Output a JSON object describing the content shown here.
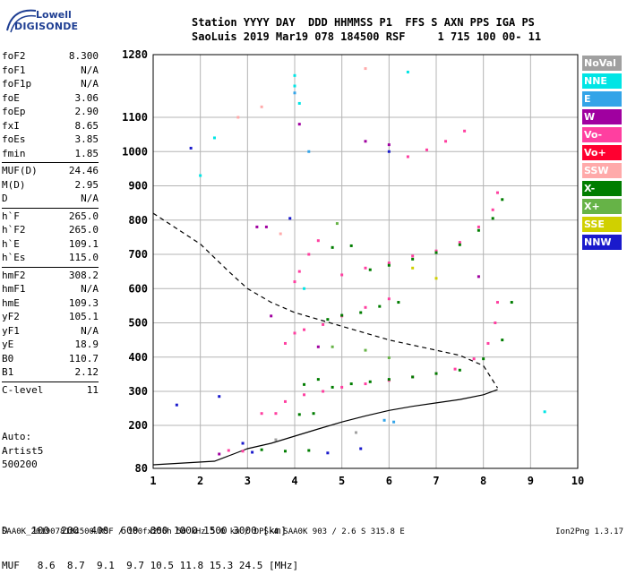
{
  "logo": {
    "line1": "Lowell",
    "line2": "DIGISONDE"
  },
  "header": {
    "row1": "Station YYYY DAY  DDD HHMMSS P1  FFS S AXN PPS IGA PS",
    "row2": "SaoLuis 2019 Mar19 078 184500 RSF     1 715 100 00- 11"
  },
  "params": [
    [
      {
        "k": "foF2",
        "v": "8.300"
      },
      {
        "k": "foF1",
        "v": "N/A"
      },
      {
        "k": "foF1p",
        "v": "N/A"
      },
      {
        "k": "foE",
        "v": "3.06"
      },
      {
        "k": "foEp",
        "v": "2.90"
      },
      {
        "k": "fxI",
        "v": "8.65"
      },
      {
        "k": "foEs",
        "v": "3.85"
      },
      {
        "k": "fmin",
        "v": "1.85"
      }
    ],
    [
      {
        "k": "MUF(D)",
        "v": "24.46"
      },
      {
        "k": "M(D)",
        "v": "2.95"
      },
      {
        "k": "D",
        "v": "N/A"
      }
    ],
    [
      {
        "k": "h`F",
        "v": "265.0"
      },
      {
        "k": "h`F2",
        "v": "265.0"
      },
      {
        "k": "h`E",
        "v": "109.1"
      },
      {
        "k": "h`Es",
        "v": "115.0"
      }
    ],
    [
      {
        "k": "hmF2",
        "v": "308.2"
      },
      {
        "k": "hmF1",
        "v": "N/A"
      },
      {
        "k": "hmE",
        "v": "109.3"
      },
      {
        "k": "yF2",
        "v": "105.1"
      },
      {
        "k": "yF1",
        "v": "N/A"
      },
      {
        "k": "yE",
        "v": "18.9"
      },
      {
        "k": "B0",
        "v": "110.7"
      },
      {
        "k": "B1",
        "v": "2.12"
      }
    ],
    [
      {
        "k": "C-level",
        "v": "11"
      }
    ]
  ],
  "auto": {
    "l1": "Auto:",
    "l2": "Artist5",
    "l3": "500200"
  },
  "legend": [
    {
      "label": "NoVal",
      "color": "#a0a0a0"
    },
    {
      "label": "NNE",
      "color": "#00e5e5"
    },
    {
      "label": "E",
      "color": "#33a4e8"
    },
    {
      "label": "W",
      "color": "#a000a0"
    },
    {
      "label": "Vo-",
      "color": "#ff3fa0"
    },
    {
      "label": "Vo+",
      "color": "#ff0030"
    },
    {
      "label": "SSW",
      "color": "#ffaaaa"
    },
    {
      "label": "X-",
      "color": "#007d00"
    },
    {
      "label": "X+",
      "color": "#66b347"
    },
    {
      "label": "SSE",
      "color": "#d0d000"
    },
    {
      "label": "NNW",
      "color": "#1a1acc"
    }
  ],
  "bottom": {
    "d_row": "D    100  200  400  600  800 1000 1500 3000 [km]",
    "muf_row": "MUF   8.6  8.7  9.1  9.7 10.5 11.8 15.3 24.5 [MHz]"
  },
  "footer": "SAA0K_2019078184500.RSF / 180fx256h 50 kHz 5.0 km / DPS-4 SAA0K 903 / 2.6 S 315.8 E",
  "footer_version": "Ion2Png 1.3.17",
  "chart_data": {
    "type": "scatter",
    "x_ticks": [
      "1",
      "2",
      "3",
      "4",
      "5",
      "6",
      "7",
      "8",
      "9",
      "10"
    ],
    "y_ticks": [
      "80",
      "200",
      "300",
      "400",
      "500",
      "600",
      "700",
      "800",
      "900",
      "1000",
      "1100",
      "1280"
    ],
    "xlim": [
      1,
      10
    ],
    "ylim": [
      80,
      1280
    ],
    "grid": true,
    "legend_placement": "right",
    "series": [
      {
        "name": "Vo-",
        "color": "#ff3fa0",
        "points": [
          [
            2.6,
            130
          ],
          [
            2.9,
            128
          ],
          [
            3.3,
            235
          ],
          [
            3.6,
            235
          ],
          [
            3.8,
            270
          ],
          [
            4.2,
            290
          ],
          [
            4.6,
            300
          ],
          [
            5.0,
            312
          ],
          [
            5.5,
            322
          ],
          [
            6.0,
            332
          ],
          [
            6.5,
            342
          ],
          [
            7.0,
            352
          ],
          [
            7.4,
            365
          ],
          [
            7.8,
            395
          ],
          [
            8.1,
            440
          ],
          [
            8.25,
            500
          ],
          [
            8.3,
            560
          ],
          [
            4.0,
            470
          ],
          [
            4.2,
            480
          ],
          [
            4.6,
            495
          ],
          [
            5.0,
            520
          ],
          [
            5.5,
            545
          ],
          [
            6.0,
            570
          ],
          [
            4.0,
            620
          ],
          [
            4.1,
            650
          ],
          [
            4.3,
            700
          ],
          [
            4.5,
            740
          ],
          [
            5.0,
            640
          ],
          [
            5.5,
            660
          ],
          [
            6.0,
            675
          ],
          [
            6.5,
            695
          ],
          [
            7.0,
            710
          ],
          [
            7.5,
            735
          ],
          [
            7.9,
            780
          ],
          [
            8.2,
            830
          ],
          [
            8.3,
            880
          ],
          [
            6.4,
            985
          ],
          [
            6.8,
            1005
          ],
          [
            7.2,
            1030
          ],
          [
            7.6,
            1060
          ],
          [
            3.8,
            440
          ]
        ]
      },
      {
        "name": "X-",
        "color": "#007d00",
        "points": [
          [
            3.3,
            132
          ],
          [
            3.8,
            128
          ],
          [
            4.3,
            130
          ],
          [
            4.1,
            232
          ],
          [
            4.4,
            235
          ],
          [
            4.2,
            320
          ],
          [
            4.5,
            335
          ],
          [
            4.8,
            312
          ],
          [
            5.2,
            322
          ],
          [
            5.6,
            328
          ],
          [
            6.0,
            335
          ],
          [
            6.5,
            342
          ],
          [
            7.0,
            352
          ],
          [
            7.5,
            362
          ],
          [
            8.0,
            395
          ],
          [
            8.4,
            450
          ],
          [
            8.6,
            560
          ],
          [
            4.7,
            510
          ],
          [
            5.0,
            522
          ],
          [
            5.4,
            530
          ],
          [
            5.8,
            548
          ],
          [
            6.2,
            560
          ],
          [
            4.8,
            720
          ],
          [
            5.2,
            725
          ],
          [
            5.6,
            655
          ],
          [
            6.0,
            668
          ],
          [
            6.5,
            686
          ],
          [
            7.0,
            705
          ],
          [
            7.5,
            728
          ],
          [
            7.9,
            770
          ],
          [
            8.2,
            805
          ],
          [
            8.4,
            860
          ]
        ]
      },
      {
        "name": "NNW",
        "color": "#1a1acc",
        "points": [
          [
            1.5,
            260
          ],
          [
            2.4,
            285
          ],
          [
            2.9,
            150
          ],
          [
            3.1,
            125
          ],
          [
            4.7,
            123
          ],
          [
            1.8,
            1010
          ],
          [
            3.9,
            805
          ],
          [
            5.4,
            135
          ],
          [
            6.0,
            1000
          ]
        ]
      },
      {
        "name": "W",
        "color": "#a000a0",
        "points": [
          [
            2.4,
            120
          ],
          [
            3.2,
            780
          ],
          [
            3.5,
            520
          ],
          [
            4.1,
            1080
          ],
          [
            4.5,
            430
          ],
          [
            5.5,
            1030
          ],
          [
            6.0,
            1020
          ],
          [
            7.9,
            635
          ],
          [
            3.4,
            780
          ]
        ]
      },
      {
        "name": "NNE",
        "color": "#00e5e5",
        "points": [
          [
            2.0,
            930
          ],
          [
            2.3,
            1040
          ],
          [
            4.0,
            1190
          ],
          [
            4.0,
            1220
          ],
          [
            4.1,
            1140
          ],
          [
            4.2,
            600
          ],
          [
            6.4,
            1230
          ],
          [
            9.3,
            240
          ]
        ]
      },
      {
        "name": "SSW",
        "color": "#ffaaaa",
        "points": [
          [
            2.8,
            1100
          ],
          [
            3.3,
            1130
          ],
          [
            3.7,
            760
          ],
          [
            5.5,
            1240
          ]
        ]
      },
      {
        "name": "X+",
        "color": "#66b347",
        "points": [
          [
            4.8,
            430
          ],
          [
            5.5,
            420
          ],
          [
            6.0,
            398
          ],
          [
            4.9,
            790
          ]
        ]
      },
      {
        "name": "SSE",
        "color": "#d0d000",
        "points": [
          [
            6.5,
            660
          ],
          [
            7.0,
            630
          ]
        ]
      },
      {
        "name": "E",
        "color": "#33a4e8",
        "points": [
          [
            4.0,
            1170
          ],
          [
            4.3,
            1000
          ],
          [
            5.9,
            215
          ],
          [
            6.1,
            210
          ]
        ]
      },
      {
        "name": "NoVal",
        "color": "#a0a0a0",
        "points": [
          [
            3.6,
            160
          ],
          [
            5.3,
            180
          ]
        ]
      }
    ],
    "profile_solid": [
      [
        1,
        90
      ],
      [
        2.3,
        100
      ],
      [
        2.6,
        115
      ],
      [
        2.8,
        125
      ],
      [
        3.0,
        135
      ],
      [
        3.5,
        150
      ],
      [
        4.0,
        170
      ],
      [
        4.5,
        190
      ],
      [
        5.0,
        210
      ],
      [
        5.5,
        228
      ],
      [
        6.0,
        244
      ],
      [
        6.5,
        256
      ],
      [
        7.0,
        266
      ],
      [
        7.5,
        276
      ],
      [
        8.0,
        290
      ],
      [
        8.3,
        305
      ]
    ],
    "profile_dashed": [
      [
        1,
        820
      ],
      [
        2.0,
        730
      ],
      [
        2.6,
        650
      ],
      [
        3.0,
        600
      ],
      [
        3.5,
        560
      ],
      [
        4.0,
        530
      ],
      [
        5.0,
        490
      ],
      [
        6.0,
        450
      ],
      [
        7.0,
        420
      ],
      [
        7.5,
        405
      ],
      [
        8.0,
        375
      ],
      [
        8.3,
        310
      ]
    ]
  }
}
